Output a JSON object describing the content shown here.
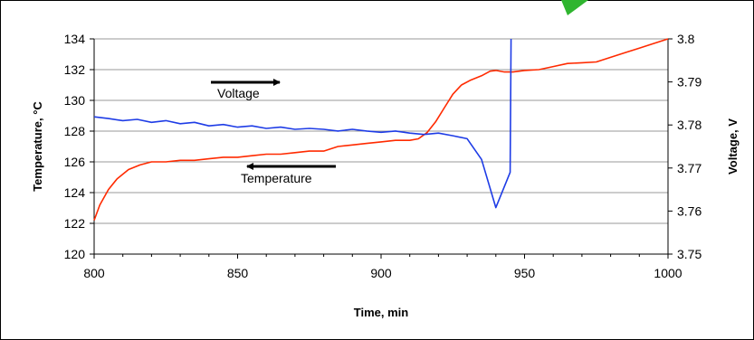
{
  "chart_data": {
    "type": "line",
    "xlabel": "Time, min",
    "ylabel_left": "Temperature, °C",
    "ylabel_right": "Voltage, V",
    "xlim": [
      800,
      1000
    ],
    "ylim_left": [
      120,
      134
    ],
    "ylim_right": [
      3.75,
      3.8
    ],
    "x_ticks": [
      "800",
      "850",
      "900",
      "950",
      "1000"
    ],
    "y_left_ticks": [
      "120",
      "122",
      "124",
      "126",
      "128",
      "130",
      "132",
      "134"
    ],
    "y_right_ticks": [
      "3.75",
      "3.76",
      "3.77",
      "3.78",
      "3.79",
      "3.8"
    ],
    "grid": "horizontal",
    "series": [
      {
        "name": "Temperature",
        "axis": "left",
        "color": "#ff2a00",
        "x": [
          800,
          802,
          805,
          808,
          812,
          816,
          820,
          825,
          830,
          835,
          840,
          845,
          850,
          855,
          860,
          865,
          870,
          875,
          880,
          885,
          890,
          895,
          900,
          905,
          910,
          913,
          916,
          919,
          922,
          925,
          928,
          931,
          935,
          938,
          940,
          943,
          946,
          950,
          955,
          960,
          965,
          970,
          975,
          980,
          985,
          990,
          995,
          1000
        ],
        "values": [
          122.2,
          123.2,
          124.2,
          124.9,
          125.5,
          125.8,
          126.0,
          126.0,
          126.1,
          126.1,
          126.2,
          126.3,
          126.3,
          126.4,
          126.5,
          126.5,
          126.6,
          126.7,
          126.7,
          127.0,
          127.1,
          127.2,
          127.3,
          127.4,
          127.4,
          127.5,
          127.9,
          128.6,
          129.5,
          130.4,
          131.0,
          131.3,
          131.6,
          131.9,
          131.95,
          131.85,
          131.85,
          131.95,
          132.0,
          132.2,
          132.4,
          132.45,
          132.5,
          132.8,
          133.1,
          133.4,
          133.7,
          134.0
        ]
      },
      {
        "name": "Voltage",
        "axis": "right",
        "color": "#1e3ce6",
        "x": [
          800,
          805,
          810,
          815,
          820,
          825,
          830,
          835,
          840,
          845,
          850,
          855,
          860,
          865,
          870,
          875,
          880,
          885,
          890,
          895,
          900,
          905,
          910,
          915,
          920,
          925,
          930,
          935,
          940,
          945,
          945.3
        ],
        "values": [
          3.7819,
          3.7815,
          3.781,
          3.7813,
          3.7806,
          3.781,
          3.7803,
          3.7806,
          3.7798,
          3.7801,
          3.7795,
          3.7798,
          3.7792,
          3.7795,
          3.779,
          3.7792,
          3.779,
          3.7786,
          3.779,
          3.7786,
          3.7783,
          3.7786,
          3.7781,
          3.7778,
          3.7781,
          3.7775,
          3.7768,
          3.772,
          3.7608,
          3.769,
          3.8
        ]
      }
    ],
    "annotations": [
      {
        "text": "Voltage",
        "arrow": "right",
        "series": "Voltage"
      },
      {
        "text": "Temperature",
        "arrow": "left",
        "series": "Temperature"
      }
    ]
  },
  "decoration": {
    "corner_arrow_color": "#2fb52f"
  }
}
